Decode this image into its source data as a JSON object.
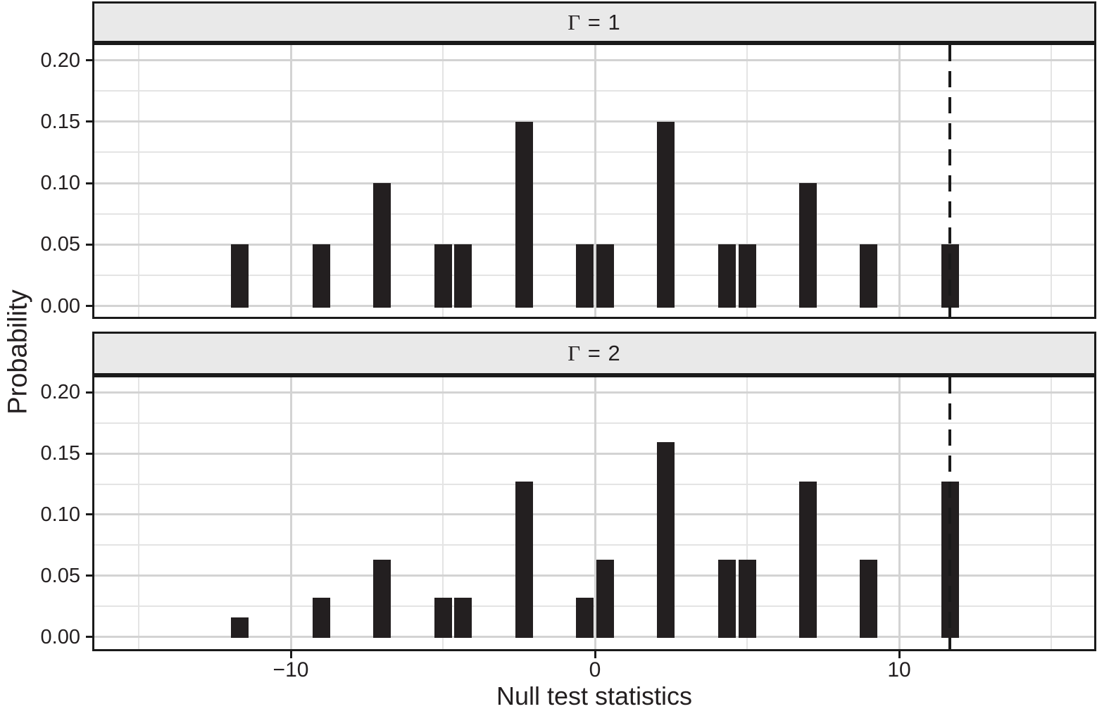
{
  "chart_data": {
    "type": "bar",
    "title": "",
    "xlabel": "Null test statistics",
    "ylabel": "Probability",
    "x_ticks": [
      -10,
      0,
      10
    ],
    "x_tick_labels": [
      "−10",
      "0",
      "10"
    ],
    "x_minor_ticks": [
      -15,
      -5,
      5,
      15
    ],
    "xlim": [
      -16.5,
      16.5
    ],
    "y_ticks": [
      0,
      0.05,
      0.1,
      0.15,
      0.2
    ],
    "y_tick_labels": [
      "0.00",
      "0.05",
      "0.10",
      "0.15",
      "0.20"
    ],
    "y_minor_ticks": [
      0.025,
      0.075,
      0.125,
      0.175
    ],
    "ylim": [
      -0.009,
      0.213
    ],
    "grid": true,
    "legend": false,
    "x": [
      -11.67,
      -9,
      -7,
      -5,
      -4.33,
      -2.33,
      -0.33,
      0.33,
      2.33,
      4.33,
      5,
      7,
      9,
      11.67
    ],
    "panels": [
      {
        "label": "Γ = 1",
        "values": [
          0.05,
          0.05,
          0.1,
          0.05,
          0.05,
          0.15,
          0.05,
          0.05,
          0.15,
          0.05,
          0.05,
          0.1,
          0.05,
          0.05
        ]
      },
      {
        "label": "Γ = 2",
        "values": [
          0.016,
          0.032,
          0.063,
          0.032,
          0.032,
          0.127,
          0.032,
          0.063,
          0.159,
          0.063,
          0.063,
          0.127,
          0.063,
          0.127
        ]
      }
    ],
    "vline_x": 11.67,
    "vline_style": "dashed",
    "bar_width_units": 0.58,
    "colors": {
      "bar": "#231f20",
      "grid_major": "#d3d3d3",
      "grid_minor": "#e4e4e4",
      "strip_bg": "#e9e9e9",
      "panel_border": "#1a1a1a",
      "vline": "#1a1a1a",
      "text": "#231f20",
      "background": "#ffffff"
    }
  }
}
